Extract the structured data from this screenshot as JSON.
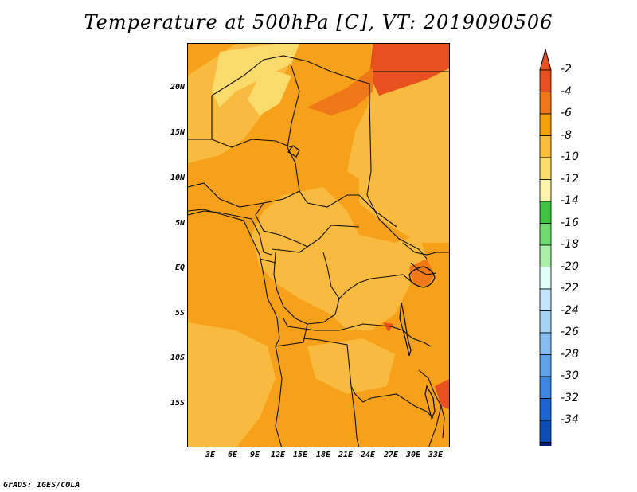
{
  "title": "Temperature at 500hPa [C], VT: 2019090506",
  "footer": "GrADS: IGES/COLA",
  "lat_labels": [
    "20N",
    "15N",
    "10N",
    "5N",
    "EQ",
    "5S",
    "10S",
    "15S"
  ],
  "lon_labels": [
    "3E",
    "6E",
    "9E",
    "12E",
    "15E",
    "18E",
    "21E",
    "24E",
    "27E",
    "30E",
    "33E"
  ],
  "colorbar": {
    "labels": [
      "-2",
      "-4",
      "-6",
      "-8",
      "-10",
      "-12",
      "-14",
      "-16",
      "-18",
      "-20",
      "-22",
      "-24",
      "-26",
      "-28",
      "-30",
      "-32",
      "-34"
    ],
    "colors": [
      "#e8501e",
      "#f07818",
      "#f5a00f",
      "#f8bd3c",
      "#fbdb6c",
      "#fff4ad",
      "#3ec43e",
      "#6fdc6f",
      "#a9f0a9",
      "#e0fff6",
      "#c4e4fb",
      "#a4d3f6",
      "#84bff0",
      "#5fa3e9",
      "#3d86e2",
      "#1c64d0",
      "#0c4cb4",
      "#0a1a76"
    ],
    "top_cap_color": "#e8501e",
    "bottom_cap_color": "#e6e6f8"
  }
}
